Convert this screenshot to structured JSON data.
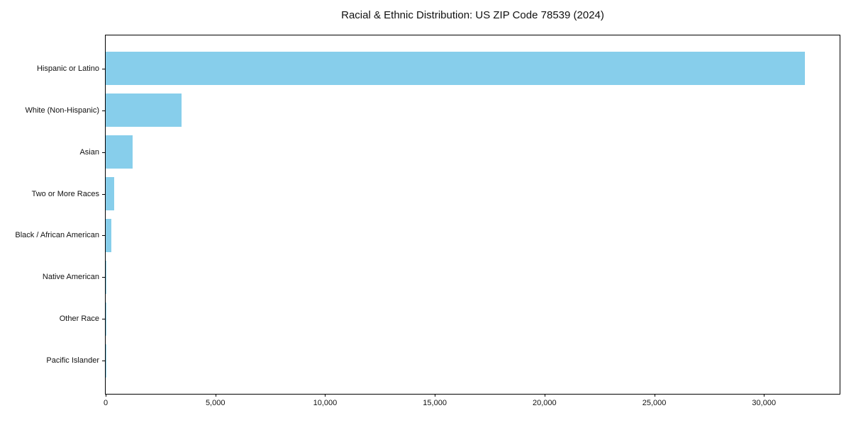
{
  "title": "Racial & Ethnic Distribution: US ZIP Code 78539 (2024)",
  "chart_data": {
    "type": "bar",
    "orientation": "horizontal",
    "title": "Racial & Ethnic Distribution: US ZIP Code 78539 (2024)",
    "categories": [
      "Hispanic or Latino",
      "White (Non-Hispanic)",
      "Asian",
      "Two or More Races",
      "Black / African American",
      "Native American",
      "Other Race",
      "Pacific Islander"
    ],
    "values": [
      31870,
      3470,
      1220,
      380,
      250,
      25,
      15,
      5
    ],
    "xlabel": "",
    "ylabel": "",
    "xlim": [
      0,
      33450
    ],
    "xticks": [
      0,
      5000,
      10000,
      15000,
      20000,
      25000,
      30000
    ],
    "xtick_labels": [
      "0",
      "5,000",
      "10,000",
      "15,000",
      "20,000",
      "25,000",
      "30,000"
    ],
    "bar_color": "#87CEEB",
    "background_color": "#FFFFFF",
    "grid": false,
    "legend": null,
    "bar_thickness_fraction": 0.8
  }
}
